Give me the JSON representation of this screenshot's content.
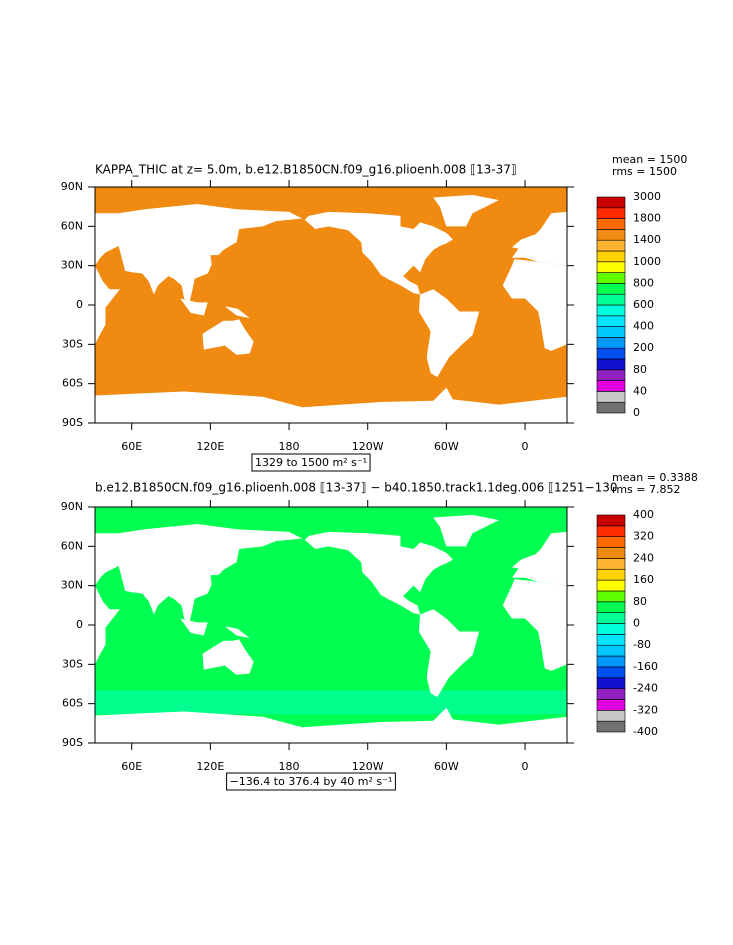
{
  "chart_data": [
    {
      "type": "map",
      "title": "KAPPA_THIC at z=    5.0m, b.e12.B1850CN.f09_g16.plioenh.008 ⟦13-37⟧",
      "annotations": [
        "mean = 1500",
        "rms = 1500"
      ],
      "range_label": "1329 to 1500 m² s⁻¹",
      "ocean_color": "#f08a10",
      "xlim": [
        32,
        392
      ],
      "xticks": [
        {
          "value": 60,
          "label": "60E"
        },
        {
          "value": 120,
          "label": "120E"
        },
        180,
        {
          "value": 240,
          "label": "120W"
        },
        {
          "value": 300,
          "label": "60W"
        },
        {
          "value": 360,
          "label": "0"
        }
      ],
      "ylim": [
        -90,
        90
      ],
      "yticks": [
        {
          "value": 90,
          "label": "90N"
        },
        {
          "value": 60,
          "label": "60N"
        },
        {
          "value": 30,
          "label": "30N"
        },
        0,
        {
          "value": -30,
          "label": "30S"
        },
        {
          "value": -60,
          "label": "60S"
        },
        {
          "value": -90,
          "label": "90S"
        }
      ],
      "colorbar": {
        "levels": [
          0,
          40,
          80,
          200,
          400,
          600,
          800,
          1000,
          1400,
          1800,
          3000
        ],
        "colors": [
          "#707070",
          "#c8c8c8",
          "#e000e0",
          "#9020c0",
          "#1010d0",
          "#0050f0",
          "#0096ff",
          "#00c8ff",
          "#00e6ff",
          "#00ffdc",
          "#00ff96",
          "#00ff50",
          "#60ff00",
          "#ffff00",
          "#ffd200",
          "#ffb432",
          "#f08a10",
          "#ff6a00",
          "#ff2a00",
          "#c80000"
        ]
      }
    },
    {
      "type": "map",
      "title": "b.e12.B1850CN.f09_g16.plioenh.008 ⟦13-37⟧ − b40.1850.track1.1deg.006 ⟦1251−130",
      "annotations": [
        "mean = 0.3388",
        "rms = 7.852"
      ],
      "range_label": "−136.4 to 376.4 by 40 m² s⁻¹",
      "ocean_color": "#00ff50",
      "xlim": [
        32,
        392
      ],
      "xticks": [
        {
          "value": 60,
          "label": "60E"
        },
        {
          "value": 120,
          "label": "120E"
        },
        180,
        {
          "value": 240,
          "label": "120W"
        },
        {
          "value": 300,
          "label": "60W"
        },
        {
          "value": 360,
          "label": "0"
        }
      ],
      "ylim": [
        -90,
        90
      ],
      "yticks": [
        {
          "value": 90,
          "label": "90N"
        },
        {
          "value": 60,
          "label": "60N"
        },
        {
          "value": 30,
          "label": "30N"
        },
        0,
        {
          "value": -30,
          "label": "30S"
        },
        {
          "value": -60,
          "label": "60S"
        },
        {
          "value": -90,
          "label": "90S"
        }
      ],
      "colorbar": {
        "levels": [
          -400,
          -320,
          -240,
          -160,
          -80,
          0,
          80,
          160,
          240,
          320,
          400
        ],
        "colors": [
          "#707070",
          "#c8c8c8",
          "#e000e0",
          "#9020c0",
          "#1010d0",
          "#0050f0",
          "#0096ff",
          "#00c8ff",
          "#00e6ff",
          "#00ffdc",
          "#00ff96",
          "#00ff50",
          "#60ff00",
          "#ffff00",
          "#ffd200",
          "#ffb432",
          "#f08a10",
          "#ff6a00",
          "#ff2a00",
          "#c80000"
        ]
      }
    }
  ]
}
